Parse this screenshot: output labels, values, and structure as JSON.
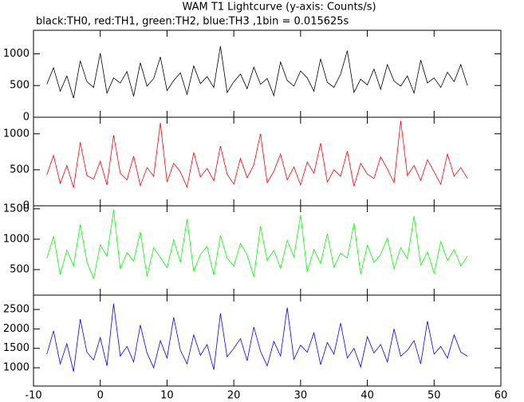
{
  "title": "WAM T1 Lightcurve (y-axis: Counts/s)",
  "subtitle": "black:TH0, red:TH1, green:TH2, blue:TH3 ,1bin = 0.015625s",
  "chart_data": [
    {
      "type": "line",
      "xlim": [
        -10,
        60
      ],
      "ylim": [
        0,
        1370
      ],
      "yticks": [
        0,
        500,
        1000
      ],
      "x": [
        -8,
        -7,
        -6,
        -5,
        -4,
        -3,
        -2,
        -1,
        0,
        1,
        2,
        3,
        4,
        5,
        6,
        7,
        8,
        9,
        10,
        11,
        12,
        13,
        14,
        15,
        16,
        17,
        18,
        19,
        20,
        21,
        22,
        23,
        24,
        25,
        26,
        27,
        28,
        29,
        30,
        31,
        32,
        33,
        34,
        35,
        36,
        37,
        38,
        39,
        40,
        41,
        42,
        43,
        44,
        45,
        46,
        47,
        48,
        49,
        50,
        51,
        52,
        53,
        54,
        55
      ],
      "series": [
        {
          "color": "#000000",
          "values": [
            520,
            780,
            410,
            650,
            300,
            890,
            560,
            470,
            1010,
            380,
            620,
            540,
            720,
            330,
            860,
            490,
            610,
            950,
            420,
            580,
            700,
            360,
            810,
            530,
            640,
            470,
            1120,
            390,
            560,
            680,
            450,
            790,
            520,
            610,
            340,
            870,
            580,
            490,
            730,
            620,
            410,
            920,
            550,
            470,
            680,
            1050,
            390,
            600,
            510,
            760,
            440,
            830,
            570,
            490,
            650,
            380,
            900,
            540,
            620,
            470,
            710,
            560,
            830,
            500
          ]
        }
      ]
    },
    {
      "type": "line",
      "xlim": [
        -10,
        60
      ],
      "ylim": [
        0,
        1230
      ],
      "yticks": [
        0,
        500,
        1000
      ],
      "x": [
        -8,
        -7,
        -6,
        -5,
        -4,
        -3,
        -2,
        -1,
        0,
        1,
        2,
        3,
        4,
        5,
        6,
        7,
        8,
        9,
        10,
        11,
        12,
        13,
        14,
        15,
        16,
        17,
        18,
        19,
        20,
        21,
        22,
        23,
        24,
        25,
        26,
        27,
        28,
        29,
        30,
        31,
        32,
        33,
        34,
        35,
        36,
        37,
        38,
        39,
        40,
        41,
        42,
        43,
        44,
        45,
        46,
        47,
        48,
        49,
        50,
        51,
        52,
        53,
        54,
        55
      ],
      "series": [
        {
          "color": "#ff0000",
          "values": [
            430,
            700,
            310,
            560,
            250,
            880,
            420,
            370,
            620,
            290,
            980,
            450,
            360,
            690,
            280,
            530,
            410,
            1150,
            330,
            590,
            470,
            260,
            740,
            400,
            520,
            350,
            830,
            440,
            300,
            660,
            390,
            570,
            1000,
            320,
            480,
            720,
            360,
            540,
            290,
            610,
            450,
            870,
            330,
            500,
            410,
            760,
            270,
            590,
            440,
            380,
            680,
            510,
            320,
            1180,
            420,
            560,
            350,
            640,
            470,
            300,
            720,
            410,
            530,
            380
          ]
        }
      ]
    },
    {
      "type": "line",
      "xlim": [
        -10,
        60
      ],
      "ylim": [
        80,
        1550
      ],
      "yticks": [
        500,
        1000,
        1500
      ],
      "x": [
        -8,
        -7,
        -6,
        -5,
        -4,
        -3,
        -2,
        -1,
        0,
        1,
        2,
        3,
        4,
        5,
        6,
        7,
        8,
        9,
        10,
        11,
        12,
        13,
        14,
        15,
        16,
        17,
        18,
        19,
        20,
        21,
        22,
        23,
        24,
        25,
        26,
        27,
        28,
        29,
        30,
        31,
        32,
        33,
        34,
        35,
        36,
        37,
        38,
        39,
        40,
        41,
        42,
        43,
        44,
        45,
        46,
        47,
        48,
        49,
        50,
        51,
        52,
        53,
        54,
        55
      ],
      "series": [
        {
          "color": "#00ff00",
          "values": [
            680,
            1050,
            420,
            820,
            560,
            1240,
            630,
            350,
            910,
            720,
            1480,
            510,
            780,
            640,
            1120,
            390,
            860,
            700,
            530,
            990,
            620,
            1330,
            470,
            750,
            880,
            410,
            1060,
            690,
            560,
            930,
            740,
            380,
            1210,
            650,
            820,
            520,
            980,
            710,
            1400,
            460,
            830,
            600,
            1090,
            540,
            770,
            690,
            1260,
            430,
            900,
            620,
            750,
            1020,
            510,
            860,
            680,
            1380,
            570,
            790,
            440,
            960,
            650,
            830,
            560,
            720
          ]
        }
      ]
    },
    {
      "type": "line",
      "xlim": [
        -10,
        60
      ],
      "xticks": [
        -10,
        0,
        10,
        20,
        30,
        40,
        50,
        60
      ],
      "ylim": [
        530,
        2870
      ],
      "yticks": [
        1000,
        1500,
        2000,
        2500
      ],
      "x": [
        -8,
        -7,
        -6,
        -5,
        -4,
        -3,
        -2,
        -1,
        0,
        1,
        2,
        3,
        4,
        5,
        6,
        7,
        8,
        9,
        10,
        11,
        12,
        13,
        14,
        15,
        16,
        17,
        18,
        19,
        20,
        21,
        22,
        23,
        24,
        25,
        26,
        27,
        28,
        29,
        30,
        31,
        32,
        33,
        34,
        35,
        36,
        37,
        38,
        39,
        40,
        41,
        42,
        43,
        44,
        45,
        46,
        47,
        48,
        49,
        50,
        51,
        52,
        53,
        54,
        55
      ],
      "series": [
        {
          "color": "#0000ff",
          "values": [
            1350,
            1950,
            1100,
            1620,
            900,
            2250,
            1400,
            1200,
            1780,
            1050,
            2650,
            1300,
            1550,
            1150,
            2100,
            1380,
            1000,
            1700,
            1250,
            2300,
            1450,
            1100,
            1850,
            1320,
            1600,
            950,
            2400,
            1280,
            1500,
            1750,
            1180,
            2050,
            1420,
            1050,
            1680,
            1300,
            2550,
            1220,
            1580,
            1400,
            1900,
            1080,
            1650,
            1350,
            2150,
            1250,
            1500,
            1020,
            1800,
            1380,
            1600,
            1150,
            2000,
            1300,
            1450,
            1700,
            1100,
            2200,
            1350,
            1550,
            1250,
            1850,
            1400,
            1300
          ]
        }
      ]
    }
  ]
}
